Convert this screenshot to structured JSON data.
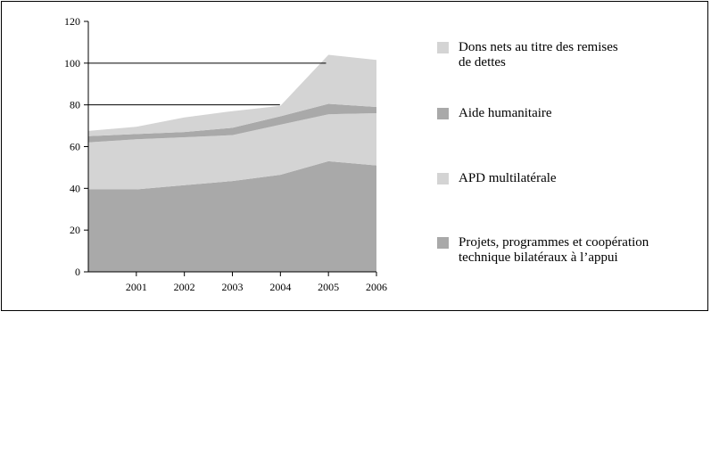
{
  "chart_data": {
    "type": "area",
    "stacked": true,
    "x": [
      "2000",
      "2001",
      "2002",
      "2003",
      "2004",
      "2005",
      "2006"
    ],
    "x_tick_labels": [
      "2001",
      "2002",
      "2003",
      "2004",
      "2005",
      "2006"
    ],
    "ylim": [
      0,
      120
    ],
    "yticks": [
      0,
      20,
      40,
      60,
      80,
      100,
      120
    ],
    "grid": "horizontal lines at 80 and 100",
    "legend_position": "right",
    "series": [
      {
        "name": "Projets, programmes et coopération technique bilatéraux à l’appui",
        "color": "#a9a9a9",
        "values": [
          39.5,
          39.5,
          41.5,
          43.5,
          46.5,
          53,
          51
        ]
      },
      {
        "name": "APD multilatérale",
        "color": "#d4d4d4",
        "values": [
          22.5,
          24,
          23,
          22,
          24,
          22.5,
          25
        ]
      },
      {
        "name": "Aide humanitaire",
        "color": "#a9a9a9",
        "values": [
          3,
          2.5,
          2.5,
          3.5,
          4,
          5,
          3
        ]
      },
      {
        "name": "Dons nets au titre des remises de dettes",
        "color": "#d4d4d4",
        "values": [
          2.5,
          3.5,
          7,
          8,
          5,
          23.5,
          22.5
        ]
      }
    ]
  },
  "legend": [
    {
      "label": "Dons nets au titre des remises\nde dettes",
      "color": "#d4d4d4"
    },
    {
      "label": "Aide humanitaire",
      "color": "#a9a9a9"
    },
    {
      "label": "APD multilatérale",
      "color": "#d4d4d4"
    },
    {
      "label": "Projets, programmes et coopération\ntechnique  bilatéraux  à l’appui",
      "color": "#a9a9a9"
    }
  ]
}
